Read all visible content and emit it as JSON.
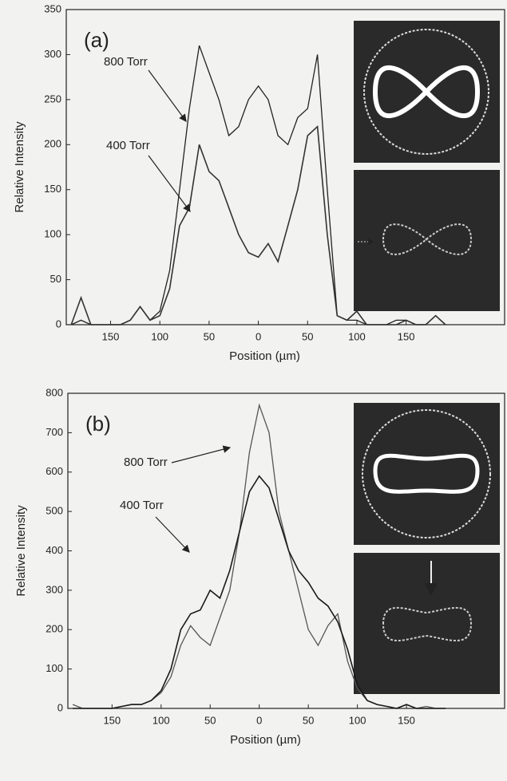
{
  "chart_data": [
    {
      "type": "line",
      "panel_label": "(a)",
      "xlabel": "Position (µm)",
      "ylabel": "Relative Intensity",
      "xlim": [
        -195,
        250
      ],
      "ylim": [
        0,
        350
      ],
      "xticks": [
        {
          "value": -150,
          "label": "150"
        },
        {
          "value": -100,
          "label": "100"
        },
        {
          "value": -50,
          "label": "50"
        },
        0,
        50,
        100,
        150
      ],
      "yticks": [
        0,
        50,
        100,
        150,
        200,
        250,
        300,
        350
      ],
      "x": [
        -190,
        -180,
        -170,
        -160,
        -150,
        -140,
        -130,
        -120,
        -110,
        -100,
        -90,
        -80,
        -70,
        -60,
        -50,
        -40,
        -30,
        -20,
        -10,
        0,
        10,
        20,
        30,
        40,
        50,
        60,
        70,
        80,
        90,
        100,
        110,
        120,
        130,
        140,
        150,
        160,
        170,
        180,
        190
      ],
      "series": [
        {
          "name": "800 Torr",
          "color": "#222222",
          "values": [
            0,
            5,
            0,
            0,
            0,
            0,
            5,
            20,
            5,
            15,
            60,
            150,
            240,
            310,
            280,
            250,
            210,
            220,
            250,
            265,
            250,
            210,
            200,
            230,
            240,
            300,
            150,
            10,
            5,
            5,
            0,
            0,
            0,
            5,
            5,
            0,
            0,
            10,
            0
          ]
        },
        {
          "name": "400 Torr",
          "color": "#333333",
          "values": [
            0,
            30,
            0,
            0,
            0,
            0,
            5,
            20,
            5,
            10,
            40,
            110,
            130,
            200,
            170,
            160,
            130,
            100,
            80,
            75,
            90,
            70,
            110,
            150,
            210,
            220,
            100,
            10,
            5,
            15,
            0,
            0,
            0,
            0,
            5,
            0,
            0,
            10,
            0
          ]
        }
      ]
    },
    {
      "type": "line",
      "panel_label": "(b)",
      "xlabel": "Position (µm)",
      "ylabel": "Relative Intensity",
      "xlim": [
        -195,
        250
      ],
      "ylim": [
        0,
        800
      ],
      "xticks": [
        {
          "value": -150,
          "label": "150"
        },
        {
          "value": -100,
          "label": "100"
        },
        {
          "value": -50,
          "label": "50"
        },
        0,
        50,
        100,
        150
      ],
      "yticks": [
        0,
        100,
        200,
        300,
        400,
        500,
        600,
        700,
        800
      ],
      "x": [
        -190,
        -180,
        -170,
        -160,
        -150,
        -140,
        -130,
        -120,
        -110,
        -100,
        -90,
        -80,
        -70,
        -60,
        -50,
        -40,
        -30,
        -20,
        -10,
        0,
        10,
        20,
        30,
        40,
        50,
        60,
        70,
        80,
        90,
        100,
        110,
        120,
        130,
        140,
        150,
        160,
        170,
        180,
        190
      ],
      "series": [
        {
          "name": "800 Torr",
          "color": "#555555",
          "values": [
            10,
            0,
            0,
            0,
            0,
            5,
            10,
            10,
            20,
            40,
            80,
            160,
            210,
            180,
            160,
            230,
            300,
            450,
            650,
            770,
            700,
            500,
            400,
            300,
            200,
            160,
            210,
            240,
            120,
            50,
            20,
            10,
            5,
            0,
            10,
            0,
            5,
            0,
            0
          ]
        },
        {
          "name": "400 Torr",
          "color": "#1a1a1a",
          "values": [
            0,
            0,
            0,
            0,
            0,
            5,
            10,
            10,
            20,
            45,
            100,
            200,
            240,
            250,
            300,
            280,
            350,
            450,
            550,
            590,
            560,
            480,
            400,
            350,
            320,
            280,
            260,
            220,
            150,
            60,
            20,
            10,
            5,
            0,
            10,
            0,
            0,
            0,
            0
          ]
        }
      ]
    }
  ]
}
